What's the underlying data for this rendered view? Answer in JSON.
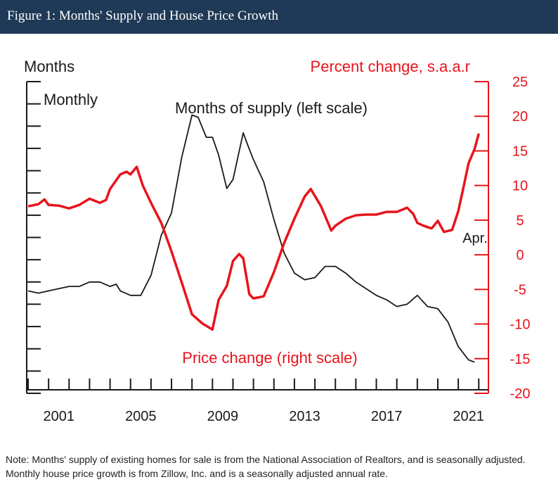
{
  "header": {
    "title": "Figure 1: Months' Supply and House Price Growth"
  },
  "colors": {
    "header_bg": "#1f3a56",
    "supply_line": "#1a1a1a",
    "price_line": "#e8141b",
    "left_axis": "#1a1a1a",
    "right_axis": "#e8141b"
  },
  "chart_data": {
    "type": "line",
    "title": "",
    "left_axis_title": "Months",
    "left_axis_subtitle": "Monthly",
    "right_axis_title": "Percent change, s.a.a.r",
    "x_tick_labels": [
      "2001",
      "2005",
      "2009",
      "2013",
      "2017",
      "2021"
    ],
    "x_ticks": [
      2001,
      2005,
      2009,
      2013,
      2017,
      2021
    ],
    "xlim": [
      2000,
      2022.3
    ],
    "right_ylim": [
      -20,
      25
    ],
    "right_ticks": [
      25,
      20,
      15,
      10,
      5,
      0,
      -5,
      -10,
      -15,
      -20
    ],
    "right_tick_labels": [
      "25",
      "20",
      "15",
      "10",
      "5",
      "0",
      "-5",
      "-10",
      "-15",
      "-20"
    ],
    "left_ylim": [
      0,
      14
    ],
    "left_ticks_unlabeled": true,
    "series": [
      {
        "name": "Months of supply (left scale)",
        "axis": "left",
        "points": [
          [
            2000.0,
            4.6
          ],
          [
            2000.5,
            4.5
          ],
          [
            2001.0,
            4.6
          ],
          [
            2001.5,
            4.7
          ],
          [
            2002.0,
            4.8
          ],
          [
            2002.5,
            4.8
          ],
          [
            2003.0,
            5.0
          ],
          [
            2003.5,
            5.0
          ],
          [
            2004.0,
            4.8
          ],
          [
            2004.3,
            4.9
          ],
          [
            2004.5,
            4.6
          ],
          [
            2005.0,
            4.4
          ],
          [
            2005.5,
            4.4
          ],
          [
            2006.0,
            5.3
          ],
          [
            2006.5,
            7.1
          ],
          [
            2007.0,
            8.1
          ],
          [
            2007.5,
            10.6
          ],
          [
            2008.0,
            12.5
          ],
          [
            2008.3,
            12.4
          ],
          [
            2008.7,
            11.5
          ],
          [
            2009.0,
            11.5
          ],
          [
            2009.3,
            10.7
          ],
          [
            2009.7,
            9.2
          ],
          [
            2010.0,
            9.6
          ],
          [
            2010.5,
            11.7
          ],
          [
            2010.7,
            11.2
          ],
          [
            2011.0,
            10.5
          ],
          [
            2011.5,
            9.5
          ],
          [
            2012.0,
            7.8
          ],
          [
            2012.5,
            6.3
          ],
          [
            2013.0,
            5.4
          ],
          [
            2013.5,
            5.1
          ],
          [
            2014.0,
            5.2
          ],
          [
            2014.5,
            5.7
          ],
          [
            2015.0,
            5.7
          ],
          [
            2015.5,
            5.4
          ],
          [
            2016.0,
            5.0
          ],
          [
            2016.5,
            4.7
          ],
          [
            2017.0,
            4.4
          ],
          [
            2017.5,
            4.2
          ],
          [
            2018.0,
            3.9
          ],
          [
            2018.5,
            4.0
          ],
          [
            2019.0,
            4.4
          ],
          [
            2019.5,
            3.9
          ],
          [
            2020.0,
            3.8
          ],
          [
            2020.5,
            3.2
          ],
          [
            2021.0,
            2.1
          ],
          [
            2021.5,
            1.5
          ],
          [
            2021.8,
            1.4
          ]
        ]
      },
      {
        "name": "Price change (right scale)",
        "axis": "right",
        "points": [
          [
            2000.0,
            7.0
          ],
          [
            2000.5,
            7.3
          ],
          [
            2000.8,
            8.0
          ],
          [
            2001.0,
            7.2
          ],
          [
            2001.5,
            7.1
          ],
          [
            2002.0,
            6.7
          ],
          [
            2002.5,
            7.2
          ],
          [
            2003.0,
            8.1
          ],
          [
            2003.5,
            7.5
          ],
          [
            2003.8,
            7.9
          ],
          [
            2004.0,
            9.5
          ],
          [
            2004.5,
            11.6
          ],
          [
            2004.8,
            12.0
          ],
          [
            2005.0,
            11.6
          ],
          [
            2005.3,
            12.7
          ],
          [
            2005.6,
            10.0
          ],
          [
            2006.0,
            7.5
          ],
          [
            2006.5,
            4.6
          ],
          [
            2007.0,
            0.5
          ],
          [
            2007.5,
            -4.0
          ],
          [
            2008.0,
            -8.6
          ],
          [
            2008.5,
            -9.9
          ],
          [
            2009.0,
            -10.8
          ],
          [
            2009.3,
            -6.5
          ],
          [
            2009.7,
            -4.5
          ],
          [
            2010.0,
            -0.9
          ],
          [
            2010.3,
            0.1
          ],
          [
            2010.5,
            -0.5
          ],
          [
            2010.8,
            -5.7
          ],
          [
            2011.0,
            -6.3
          ],
          [
            2011.5,
            -6.0
          ],
          [
            2012.0,
            -2.5
          ],
          [
            2012.5,
            1.7
          ],
          [
            2013.0,
            5.2
          ],
          [
            2013.5,
            8.4
          ],
          [
            2013.8,
            9.5
          ],
          [
            2014.3,
            7.0
          ],
          [
            2014.8,
            3.5
          ],
          [
            2015.0,
            4.2
          ],
          [
            2015.5,
            5.2
          ],
          [
            2016.0,
            5.7
          ],
          [
            2016.5,
            5.8
          ],
          [
            2017.0,
            5.8
          ],
          [
            2017.5,
            6.2
          ],
          [
            2018.0,
            6.2
          ],
          [
            2018.5,
            6.8
          ],
          [
            2018.8,
            5.9
          ],
          [
            2019.0,
            4.6
          ],
          [
            2019.3,
            4.2
          ],
          [
            2019.7,
            3.8
          ],
          [
            2020.0,
            4.9
          ],
          [
            2020.3,
            3.3
          ],
          [
            2020.7,
            3.6
          ],
          [
            2021.0,
            6.3
          ],
          [
            2021.3,
            10.4
          ],
          [
            2021.5,
            13.2
          ],
          [
            2021.8,
            15.3
          ],
          [
            2022.0,
            17.5
          ]
        ]
      }
    ],
    "annotations": [
      {
        "text": "Months of supply (left scale)"
      },
      {
        "text": "Price change (right scale)"
      },
      {
        "text": "Apr."
      }
    ]
  },
  "note": "Note: Months' supply of existing homes for sale is from the National Association of Realtors, and is seasonally adjusted. Monthly house price growth is from Zillow, Inc. and is a seasonally adjusted annual rate."
}
